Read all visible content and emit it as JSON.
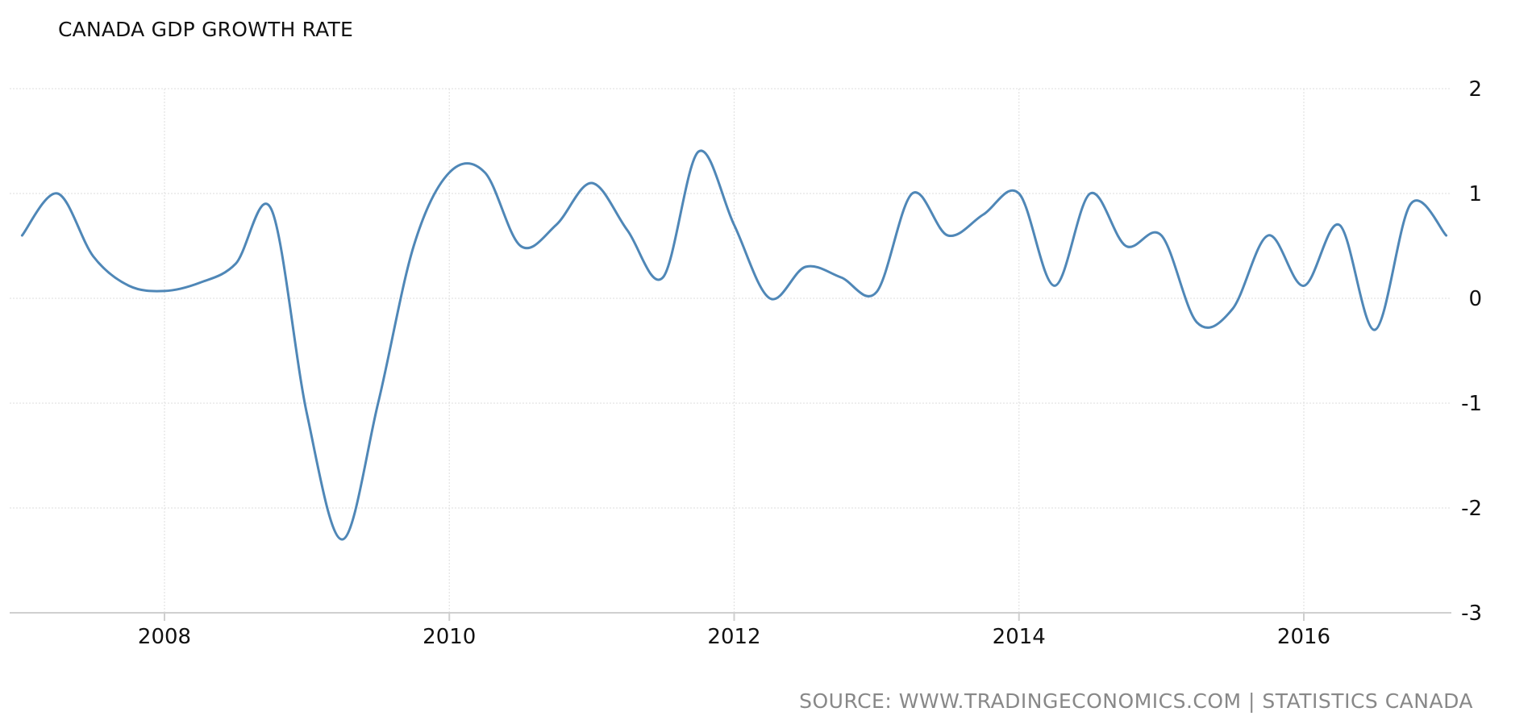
{
  "chart_data": {
    "type": "line",
    "title": "CANADA GDP GROWTH RATE",
    "xlabel": "",
    "ylabel": "",
    "xlim": [
      2007.0,
      2017.1
    ],
    "ylim": [
      -3,
      2
    ],
    "x_ticks": [
      2008,
      2010,
      2012,
      2014,
      2016
    ],
    "x_tick_labels": [
      "2008",
      "2010",
      "2012",
      "2014",
      "2016"
    ],
    "y_ticks": [
      2,
      1,
      0,
      -1,
      -2,
      -3
    ],
    "y_tick_labels": [
      "2",
      "1",
      "0",
      "-1",
      "-2",
      "-3"
    ],
    "y_axis_position": "right",
    "grid": true,
    "line_color": "#4f87b7",
    "series": [
      {
        "x": [
          2007.0,
          2007.25,
          2007.5,
          2007.75,
          2008.0,
          2008.25,
          2008.5,
          2008.75,
          2009.0,
          2009.25,
          2009.5,
          2009.75,
          2010.0,
          2010.25,
          2010.5,
          2010.75,
          2011.0,
          2011.25,
          2011.5,
          2011.75,
          2012.0,
          2012.25,
          2012.5,
          2012.75,
          2013.0,
          2013.25,
          2013.5,
          2013.75,
          2014.0,
          2014.25,
          2014.5,
          2014.75,
          2015.0,
          2015.25,
          2015.5,
          2015.75,
          2016.0,
          2016.25,
          2016.5,
          2016.75,
          2017.0
        ],
        "values": [
          0.6,
          1.0,
          0.4,
          0.12,
          0.07,
          0.15,
          0.33,
          0.85,
          -1.1,
          -2.3,
          -1.0,
          0.5,
          1.2,
          1.2,
          0.5,
          0.7,
          1.1,
          0.65,
          0.2,
          1.4,
          0.7,
          0.0,
          0.3,
          0.2,
          0.06,
          1.0,
          0.6,
          0.8,
          1.0,
          0.12,
          1.0,
          0.5,
          0.6,
          -0.23,
          -0.1,
          0.6,
          0.12,
          0.7,
          -0.3,
          0.9,
          0.6
        ]
      }
    ]
  },
  "footer": {
    "source": "SOURCE: WWW.TRADINGECONOMICS.COM | STATISTICS CANADA"
  }
}
